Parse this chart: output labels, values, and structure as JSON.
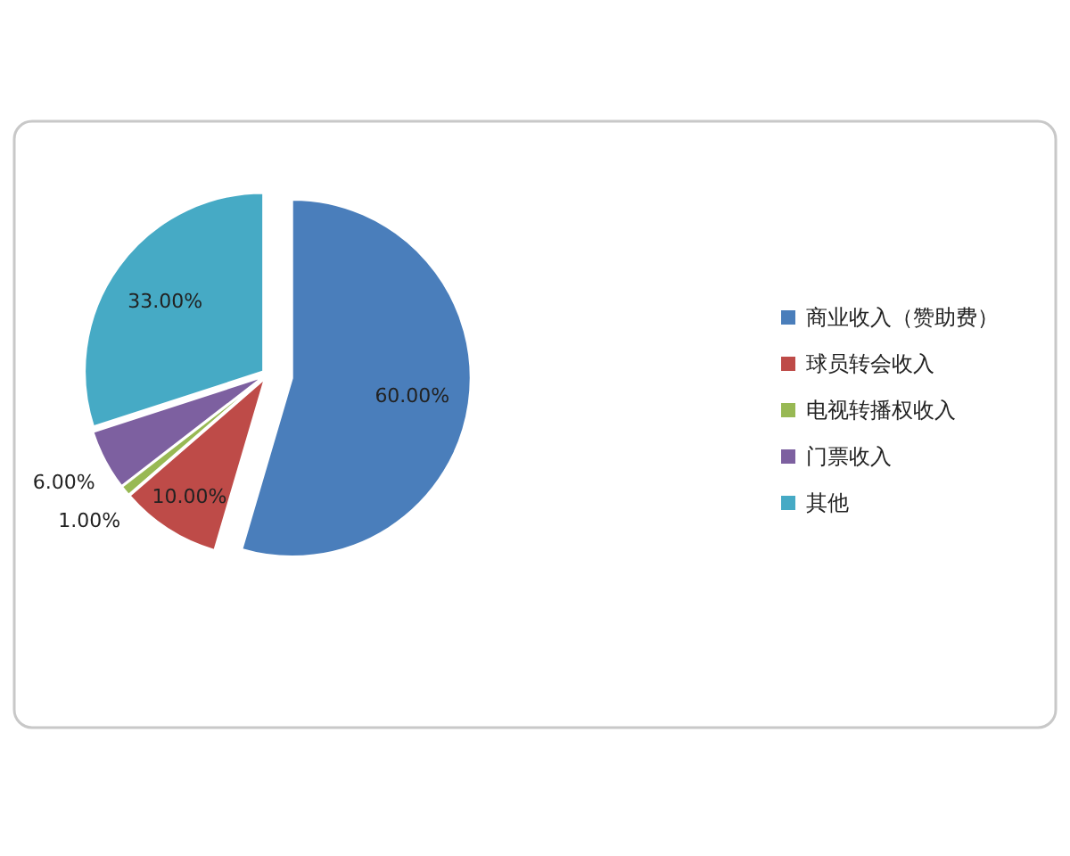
{
  "chart_data": {
    "type": "pie",
    "categories": [
      "商业收入（赞助费）",
      "球员转会收入",
      "电视转播权收入",
      "门票收入",
      "其他"
    ],
    "values": [
      60,
      10,
      1,
      6,
      33
    ],
    "value_labels": [
      "60.00%",
      "10.00%",
      "1.00%",
      "6.00%",
      "33.00%"
    ],
    "colors": [
      "#4a7ebb",
      "#be4b48",
      "#98b954",
      "#7d60a0",
      "#46aac5"
    ],
    "legend": "right"
  }
}
